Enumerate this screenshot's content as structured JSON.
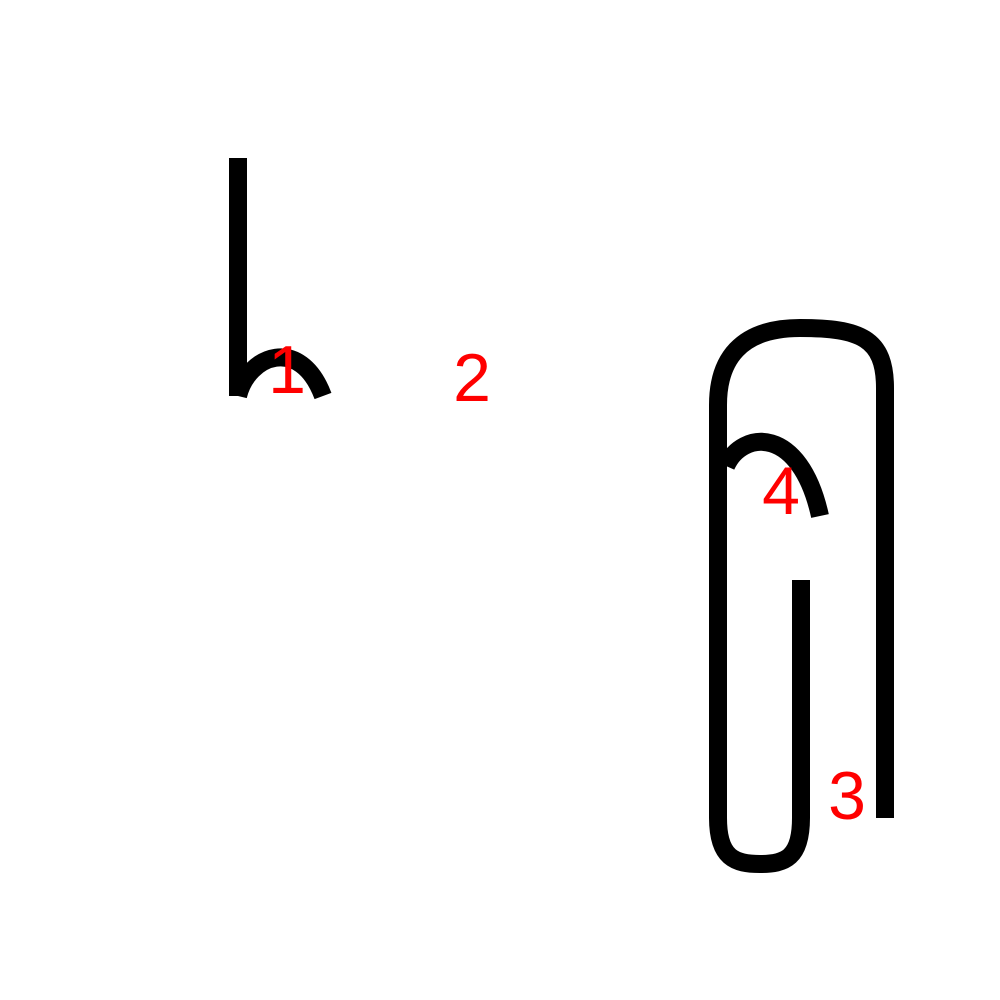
{
  "colors": {
    "background": "#ffffff",
    "stroke": "#000000",
    "label": "#ff0000"
  },
  "labels": {
    "label_1": "1",
    "label_2": "2",
    "label_3": "3",
    "label_4": "4"
  }
}
